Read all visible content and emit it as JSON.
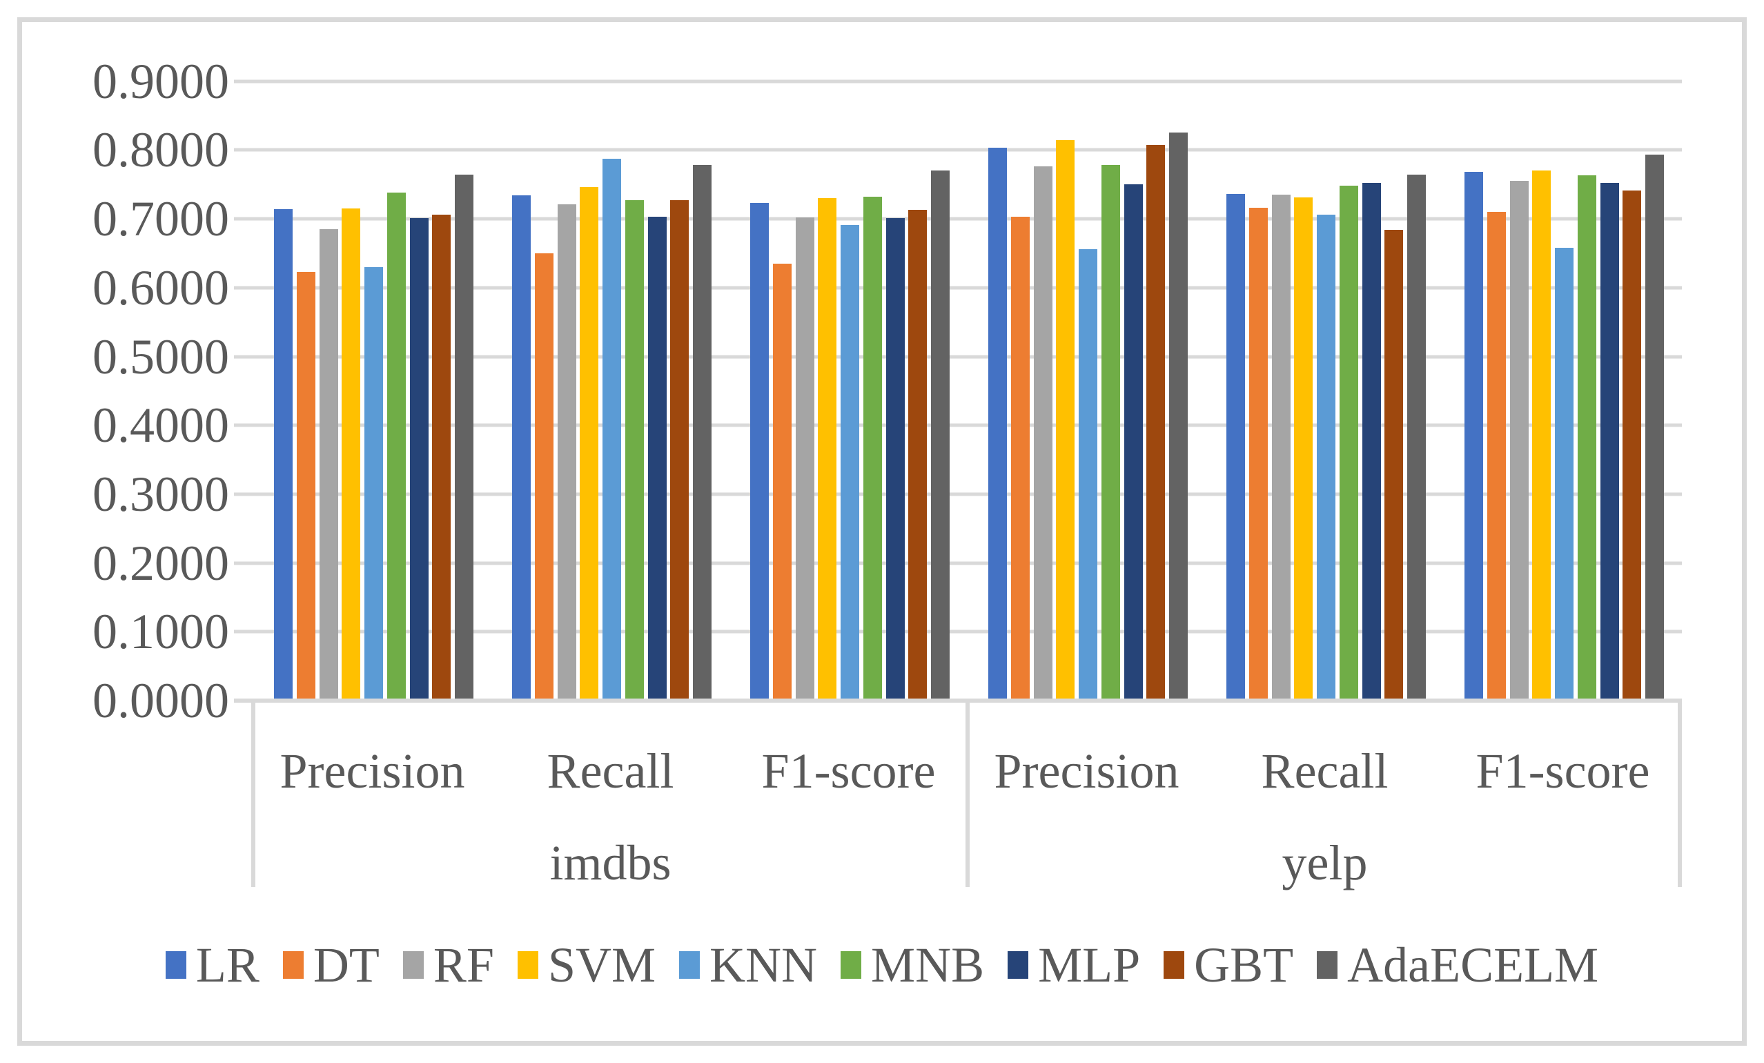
{
  "chart_data": {
    "type": "bar",
    "title": "",
    "categories": [
      "Precision",
      "Recall",
      "F1-score",
      "Precision",
      "Recall",
      "F1-score"
    ],
    "group_labels": [
      "imdbs",
      "yelp"
    ],
    "series": [
      {
        "name": "LR",
        "color": "#4472C4",
        "values": [
          0.714,
          0.734,
          0.723,
          0.803,
          0.736,
          0.768
        ]
      },
      {
        "name": "DT",
        "color": "#ED7D31",
        "values": [
          0.623,
          0.65,
          0.635,
          0.703,
          0.716,
          0.71
        ]
      },
      {
        "name": "RF",
        "color": "#A5A5A5",
        "values": [
          0.685,
          0.721,
          0.702,
          0.776,
          0.735,
          0.755
        ]
      },
      {
        "name": "SVM",
        "color": "#FFC000",
        "values": [
          0.715,
          0.746,
          0.73,
          0.814,
          0.731,
          0.77
        ]
      },
      {
        "name": "KNN",
        "color": "#5B9BD5",
        "values": [
          0.63,
          0.787,
          0.691,
          0.656,
          0.706,
          0.658
        ]
      },
      {
        "name": "MNB",
        "color": "#70AD47",
        "values": [
          0.738,
          0.727,
          0.732,
          0.778,
          0.748,
          0.763
        ]
      },
      {
        "name": "MLP",
        "color": "#264478",
        "values": [
          0.701,
          0.703,
          0.701,
          0.75,
          0.752,
          0.752
        ]
      },
      {
        "name": "GBT",
        "color": "#9E480E",
        "values": [
          0.706,
          0.727,
          0.713,
          0.807,
          0.684,
          0.741
        ]
      },
      {
        "name": "AdaECELM",
        "color": "#636363",
        "values": [
          0.764,
          0.778,
          0.77,
          0.825,
          0.764,
          0.793
        ]
      }
    ],
    "y_axis": {
      "min": 0.0,
      "max": 0.9,
      "step": 0.1,
      "tick_labels": [
        "0.0000",
        "0.1000",
        "0.2000",
        "0.3000",
        "0.4000",
        "0.5000",
        "0.6000",
        "0.7000",
        "0.8000",
        "0.9000"
      ]
    },
    "grid": true,
    "legend_position": "bottom",
    "style_colors": {
      "gridline": "#D9D9D9",
      "axis_text": "#595959",
      "figure_border": "#D9D9D9",
      "background": "#FFFFFF"
    }
  }
}
